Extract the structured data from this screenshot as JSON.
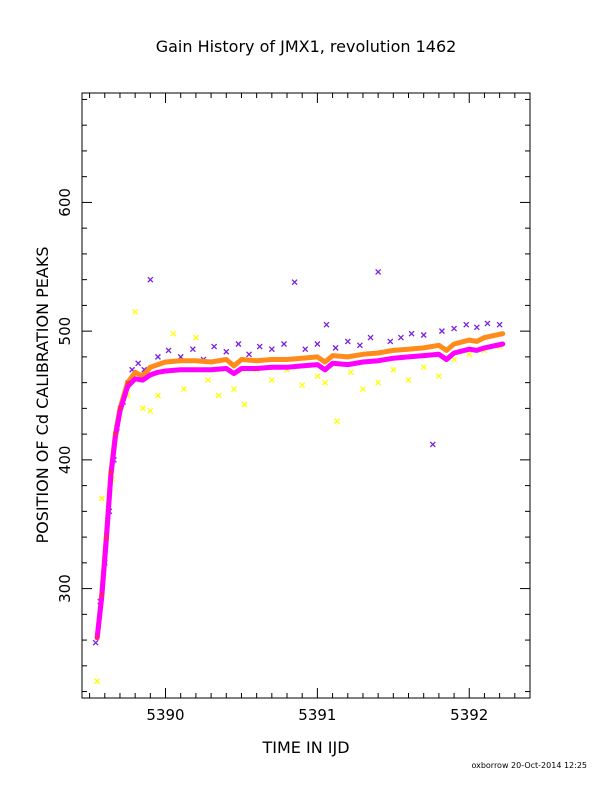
{
  "chart_data": {
    "type": "scatter",
    "title": "Gain History of JMX1, revolution 1462",
    "xlabel": "TIME IN IJD",
    "ylabel": "POSITION OF Cd CALIBRATION PEAKS",
    "xlim": [
      5389.45,
      5392.4
    ],
    "ylim": [
      215,
      685
    ],
    "x_ticks": [
      5390,
      5391,
      5392
    ],
    "y_ticks": [
      300,
      400,
      500,
      600
    ],
    "grid": false,
    "colors": {
      "purple": "#7a1fe0",
      "yellow": "#ffff00",
      "magenta": "#ff00ff",
      "orange": "#ff8c1a",
      "red": "#ff3030"
    },
    "lines": [
      {
        "color": "orange",
        "points": [
          [
            5389.55,
            262
          ],
          [
            5389.58,
            295
          ],
          [
            5389.61,
            340
          ],
          [
            5389.64,
            390
          ],
          [
            5389.67,
            420
          ],
          [
            5389.7,
            440
          ],
          [
            5389.75,
            460
          ],
          [
            5389.8,
            468
          ],
          [
            5389.85,
            465
          ],
          [
            5389.9,
            472
          ],
          [
            5389.95,
            474
          ],
          [
            5390.0,
            476
          ],
          [
            5390.1,
            477
          ],
          [
            5390.2,
            477
          ],
          [
            5390.3,
            476
          ],
          [
            5390.4,
            478
          ],
          [
            5390.45,
            473
          ],
          [
            5390.5,
            478
          ],
          [
            5390.6,
            477
          ],
          [
            5390.7,
            478
          ],
          [
            5390.8,
            478
          ],
          [
            5390.9,
            479
          ],
          [
            5391.0,
            480
          ],
          [
            5391.05,
            476
          ],
          [
            5391.1,
            481
          ],
          [
            5391.2,
            480
          ],
          [
            5391.3,
            482
          ],
          [
            5391.4,
            483
          ],
          [
            5391.5,
            485
          ],
          [
            5391.6,
            486
          ],
          [
            5391.7,
            487
          ],
          [
            5391.8,
            489
          ],
          [
            5391.85,
            485
          ],
          [
            5391.9,
            490
          ],
          [
            5392.0,
            493
          ],
          [
            5392.05,
            492
          ],
          [
            5392.1,
            495
          ],
          [
            5392.22,
            498
          ]
        ]
      },
      {
        "color": "magenta",
        "points": [
          [
            5389.55,
            262
          ],
          [
            5389.58,
            293
          ],
          [
            5389.61,
            338
          ],
          [
            5389.64,
            388
          ],
          [
            5389.67,
            418
          ],
          [
            5389.7,
            438
          ],
          [
            5389.75,
            457
          ],
          [
            5389.8,
            463
          ],
          [
            5389.85,
            462
          ],
          [
            5389.9,
            466
          ],
          [
            5389.95,
            468
          ],
          [
            5390.0,
            469
          ],
          [
            5390.1,
            470
          ],
          [
            5390.2,
            470
          ],
          [
            5390.3,
            470
          ],
          [
            5390.4,
            471
          ],
          [
            5390.45,
            467
          ],
          [
            5390.5,
            471
          ],
          [
            5390.6,
            471
          ],
          [
            5390.7,
            472
          ],
          [
            5390.8,
            472
          ],
          [
            5390.9,
            473
          ],
          [
            5391.0,
            474
          ],
          [
            5391.05,
            470
          ],
          [
            5391.1,
            475
          ],
          [
            5391.2,
            474
          ],
          [
            5391.3,
            476
          ],
          [
            5391.4,
            477
          ],
          [
            5391.5,
            479
          ],
          [
            5391.6,
            480
          ],
          [
            5391.7,
            481
          ],
          [
            5391.8,
            482
          ],
          [
            5391.85,
            478
          ],
          [
            5391.9,
            483
          ],
          [
            5392.0,
            486
          ],
          [
            5392.05,
            485
          ],
          [
            5392.1,
            487
          ],
          [
            5392.22,
            490
          ]
        ]
      }
    ],
    "scatter_series": [
      {
        "color": "purple",
        "marker": "x",
        "points": [
          [
            5389.54,
            258
          ],
          [
            5389.57,
            290
          ],
          [
            5389.6,
            320
          ],
          [
            5389.63,
            360
          ],
          [
            5389.66,
            400
          ],
          [
            5389.68,
            425
          ],
          [
            5389.72,
            445
          ],
          [
            5389.78,
            470
          ],
          [
            5389.82,
            475
          ],
          [
            5389.86,
            470
          ],
          [
            5389.9,
            540
          ],
          [
            5389.95,
            480
          ],
          [
            5390.02,
            485
          ],
          [
            5390.1,
            480
          ],
          [
            5390.18,
            486
          ],
          [
            5390.25,
            478
          ],
          [
            5390.32,
            488
          ],
          [
            5390.4,
            484
          ],
          [
            5390.48,
            490
          ],
          [
            5390.55,
            482
          ],
          [
            5390.62,
            488
          ],
          [
            5390.7,
            486
          ],
          [
            5390.78,
            490
          ],
          [
            5390.85,
            538
          ],
          [
            5390.92,
            486
          ],
          [
            5391.0,
            490
          ],
          [
            5391.06,
            505
          ],
          [
            5391.12,
            487
          ],
          [
            5391.2,
            492
          ],
          [
            5391.28,
            489
          ],
          [
            5391.35,
            495
          ],
          [
            5391.4,
            546
          ],
          [
            5391.48,
            492
          ],
          [
            5391.55,
            495
          ],
          [
            5391.62,
            498
          ],
          [
            5391.7,
            497
          ],
          [
            5391.76,
            412
          ],
          [
            5391.82,
            500
          ],
          [
            5391.9,
            502
          ],
          [
            5391.98,
            505
          ],
          [
            5392.05,
            503
          ],
          [
            5392.12,
            506
          ],
          [
            5392.2,
            505
          ]
        ]
      },
      {
        "color": "yellow",
        "marker": "x",
        "points": [
          [
            5389.55,
            228
          ],
          [
            5389.58,
            370
          ],
          [
            5389.65,
            385
          ],
          [
            5389.7,
            435
          ],
          [
            5389.75,
            450
          ],
          [
            5389.8,
            515
          ],
          [
            5389.85,
            440
          ],
          [
            5389.9,
            438
          ],
          [
            5389.95,
            450
          ],
          [
            5390.05,
            498
          ],
          [
            5390.12,
            455
          ],
          [
            5390.2,
            495
          ],
          [
            5390.28,
            462
          ],
          [
            5390.35,
            450
          ],
          [
            5390.45,
            455
          ],
          [
            5390.52,
            443
          ],
          [
            5390.6,
            470
          ],
          [
            5390.7,
            462
          ],
          [
            5390.8,
            470
          ],
          [
            5390.9,
            458
          ],
          [
            5391.0,
            465
          ],
          [
            5391.05,
            460
          ],
          [
            5391.13,
            430
          ],
          [
            5391.22,
            468
          ],
          [
            5391.3,
            455
          ],
          [
            5391.4,
            460
          ],
          [
            5391.5,
            470
          ],
          [
            5391.6,
            462
          ],
          [
            5391.7,
            472
          ],
          [
            5391.8,
            465
          ],
          [
            5391.9,
            478
          ],
          [
            5392.0,
            482
          ],
          [
            5392.1,
            485
          ],
          [
            5392.2,
            488
          ]
        ]
      }
    ]
  },
  "footer": "oxborrow 20-Oct-2014 12:25"
}
